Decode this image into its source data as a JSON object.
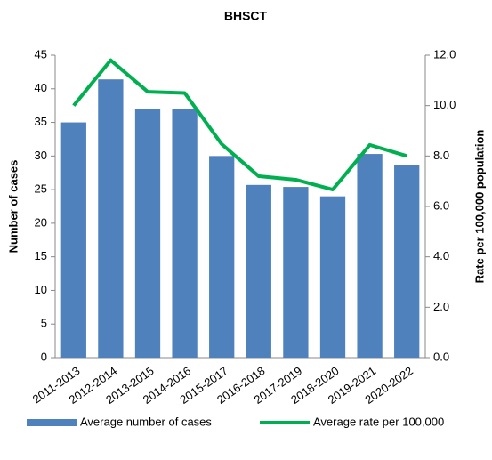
{
  "chart_data": {
    "type": "bar-line",
    "title": "BHSCT",
    "categories": [
      "2011-2013",
      "2012-2014",
      "2013-2015",
      "2014-2016",
      "2015-2017",
      "2016-2018",
      "2017-2019",
      "2018-2020",
      "2019-2021",
      "2020-2022"
    ],
    "series": [
      {
        "name": "Average number of cases",
        "type": "bar",
        "color": "#4f81bd",
        "values": [
          35,
          41.4,
          37,
          37,
          30,
          25.7,
          25.4,
          24,
          30.3,
          28.7
        ]
      },
      {
        "name": "Average rate per 100,000",
        "type": "line",
        "color": "#00b050",
        "axis": "y2",
        "values": [
          10.0,
          11.8,
          10.55,
          10.5,
          8.47,
          7.2,
          7.06,
          6.67,
          8.44,
          8.0
        ]
      }
    ],
    "y_label": "Number of cases",
    "y2_label": "Rate per 100,000 population",
    "ylim": [
      0,
      45
    ],
    "yticks": [
      0,
      5,
      10,
      15,
      20,
      25,
      30,
      35,
      40,
      45
    ],
    "y2lim": [
      0,
      12
    ],
    "y2ticks": [
      {
        "value": 0,
        "label": "0.0"
      },
      {
        "value": 2,
        "label": "2.0"
      },
      {
        "value": 4,
        "label": "4.0"
      },
      {
        "value": 6,
        "label": "6.0"
      },
      {
        "value": 8,
        "label": "8.0"
      },
      {
        "value": 10,
        "label": "10.0"
      },
      {
        "value": 12,
        "label": "12.0"
      }
    ],
    "legend": "bottom"
  }
}
